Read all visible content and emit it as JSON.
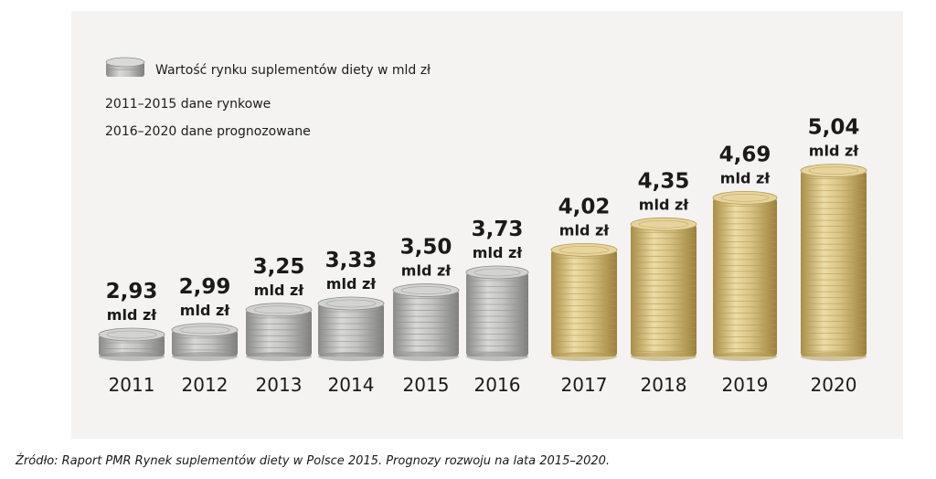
{
  "chart_data": {
    "type": "bar",
    "categories": [
      "2011",
      "2012",
      "2013",
      "2014",
      "2015",
      "2016",
      "2017",
      "2018",
      "2019",
      "2020"
    ],
    "values": [
      2.93,
      2.99,
      3.25,
      3.33,
      3.5,
      3.73,
      4.02,
      4.35,
      4.69,
      5.04
    ],
    "value_labels": [
      "2,93",
      "2,99",
      "3,25",
      "3,33",
      "3,50",
      "3,73",
      "4,02",
      "4,35",
      "4,69",
      "5,04"
    ],
    "unit_label": "mld zł",
    "legend": "Wartość rynku suplementów diety w mld zł",
    "notes": [
      "2011–2015 dane rynkowe",
      "2016–2020 dane prognozowane"
    ],
    "bar_style": [
      "silver",
      "silver",
      "silver",
      "silver",
      "silver",
      "silver",
      "gold",
      "gold",
      "gold",
      "gold"
    ],
    "colors": {
      "silver": "#b8b8b6",
      "silver_dark": "#8f8f8d",
      "gold": "#d9c58a",
      "gold_dark": "#b39a55",
      "background": "#f4f3f1"
    }
  },
  "source": "Źródło: Raport PMR Rynek suplementów diety w Polsce 2015. Prognozy rozwoju na lata 2015–2020."
}
